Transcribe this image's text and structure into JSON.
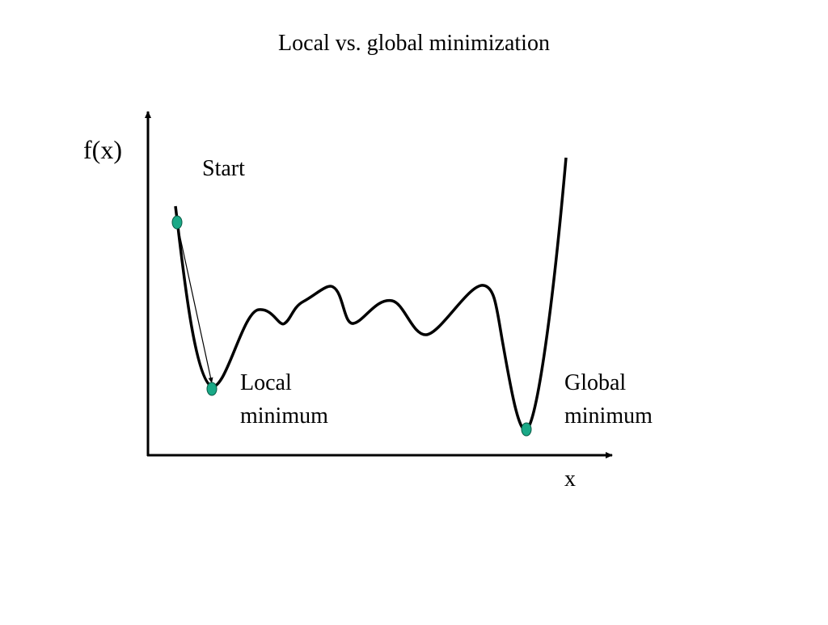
{
  "title": "Local vs. global minimization",
  "axis_labels": {
    "y": "f(x)",
    "x": "x"
  },
  "annotations": {
    "start": "Start",
    "local_minimum": [
      "Local",
      "minimum"
    ],
    "global_minimum": [
      "Global",
      "minimum"
    ]
  }
}
